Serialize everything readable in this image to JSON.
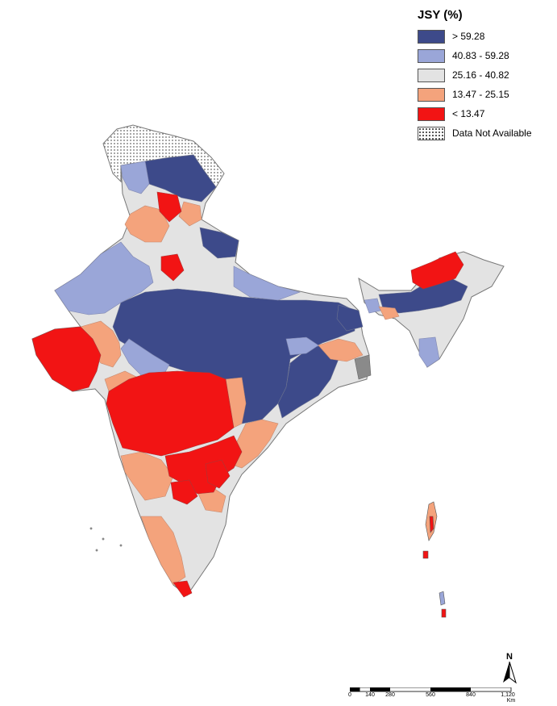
{
  "legend": {
    "title": "JSY (%)",
    "items": [
      {
        "label": "> 59.28",
        "color": "#3d4a8a"
      },
      {
        "label": "40.83 - 59.28",
        "color": "#9aa6d8"
      },
      {
        "label": "25.16 - 40.82",
        "color": "#e3e3e3"
      },
      {
        "label": "13.47 - 25.15",
        "color": "#f4a37c"
      },
      {
        "label": "< 13.47",
        "color": "#f21414"
      },
      {
        "label": "Data Not Available",
        "pattern": "dotted"
      }
    ]
  },
  "north_arrow": {
    "label": "N"
  },
  "scale_bar": {
    "ticks": [
      "0",
      "140",
      "280",
      "560",
      "840",
      "1,120"
    ],
    "unit": "Km"
  }
}
